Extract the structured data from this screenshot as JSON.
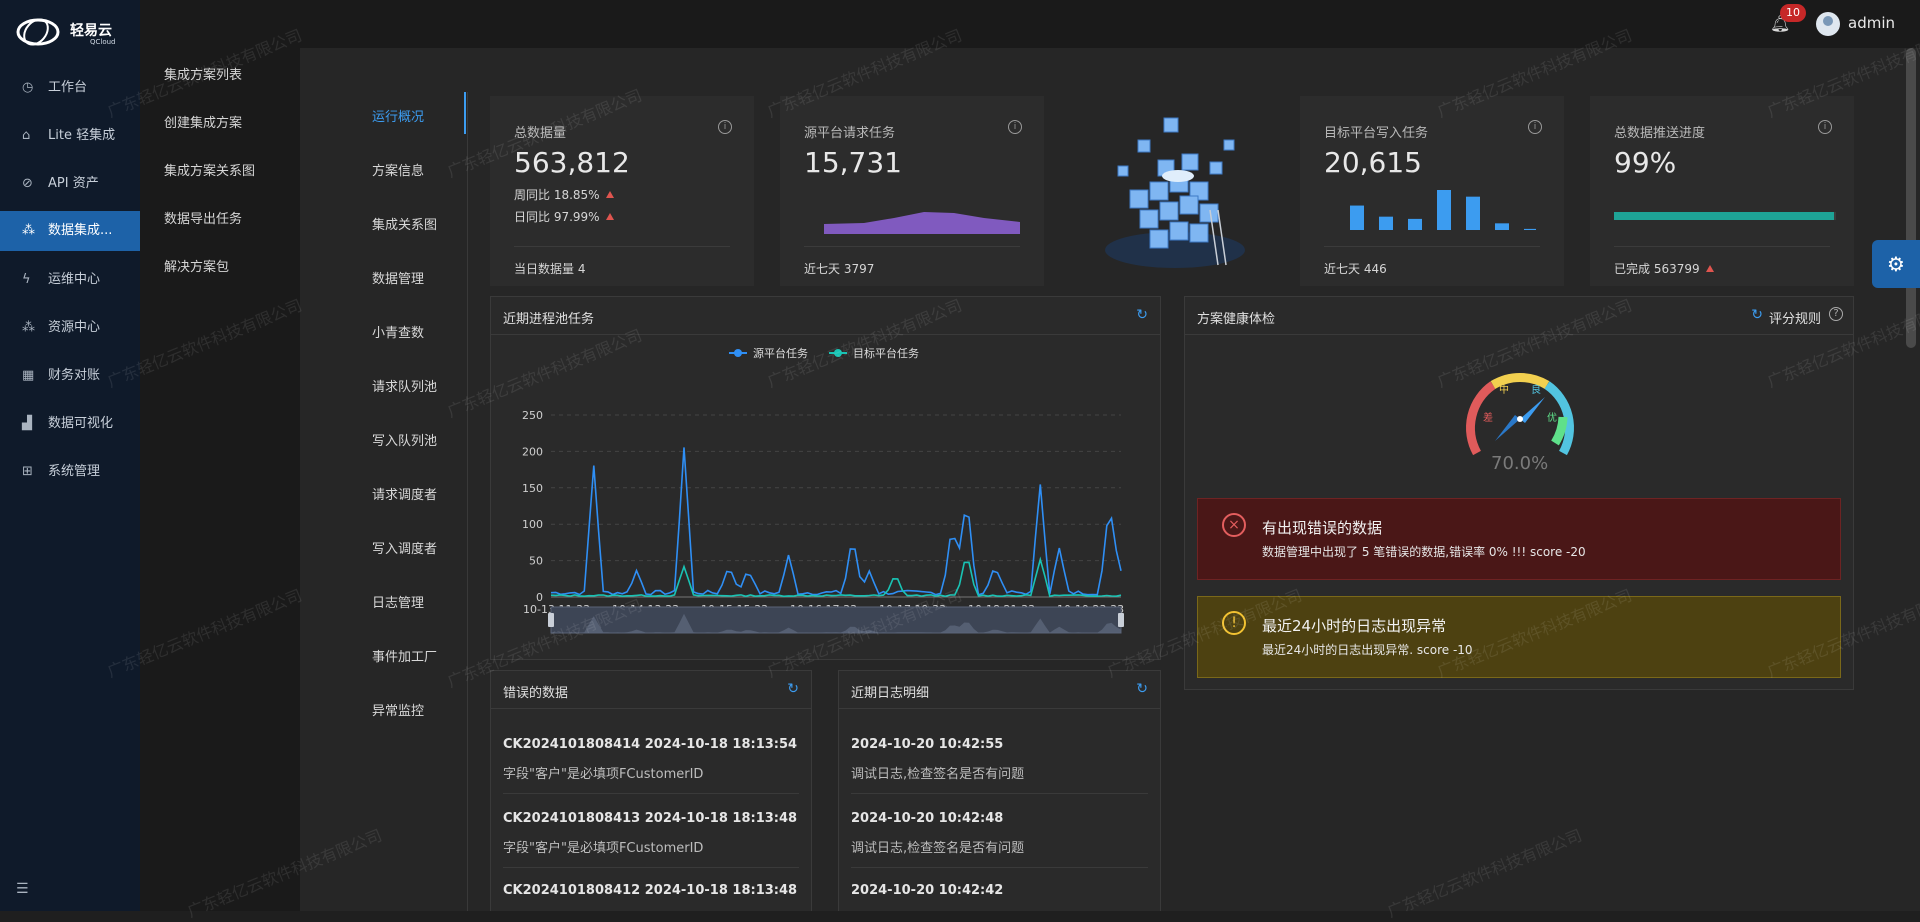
{
  "brand": {
    "name": "轻易云",
    "sub": "QCloud"
  },
  "nav": {
    "items": [
      {
        "label": "工作台",
        "icon": "clock-icon"
      },
      {
        "label": "Lite 轻集成",
        "icon": "lite-icon"
      },
      {
        "label": "API 资产",
        "icon": "compass-icon"
      },
      {
        "label": "数据集成...",
        "icon": "integration-icon",
        "active": true
      },
      {
        "label": "运维中心",
        "icon": "bolt-icon"
      },
      {
        "label": "资源中心",
        "icon": "resource-icon"
      },
      {
        "label": "财务对账",
        "icon": "ledger-icon"
      },
      {
        "label": "数据可视化",
        "icon": "chart-icon"
      },
      {
        "label": "系统管理",
        "icon": "system-icon"
      }
    ]
  },
  "subnav": {
    "items": [
      "集成方案列表",
      "创建集成方案",
      "集成方案关系图",
      "数据导出任务",
      "解决方案包"
    ]
  },
  "topbar": {
    "badge": "10",
    "user": "admin"
  },
  "tabs": {
    "items": [
      "运行概况",
      "方案信息",
      "集成关系图",
      "数据管理",
      "小青查数",
      "请求队列池",
      "写入队列池",
      "请求调度者",
      "写入调度者",
      "日志管理",
      "事件加工厂",
      "异常监控"
    ]
  },
  "kpi": {
    "total": {
      "label": "总数据量",
      "value": "563,812",
      "week": "周同比 18.85%",
      "day": "日同比 97.99%",
      "foot": "当日数据量  4"
    },
    "source": {
      "label": "源平台请求任务",
      "value": "15,731",
      "foot": "近七天  3797"
    },
    "target": {
      "label": "目标平台写入任务",
      "value": "20,615",
      "foot": "近七天  446",
      "bars": [
        22,
        12,
        10,
        36,
        30,
        6,
        1
      ]
    },
    "progress": {
      "label": "总数据推送进度",
      "value": "99%",
      "percent": 99,
      "foot": "已完成 563799"
    }
  },
  "chart_panel": {
    "title": "近期进程池任务"
  },
  "chart_data": {
    "type": "line",
    "categories": [
      "10-13 11:33",
      "10-14 13:33",
      "10-15 15:33",
      "10-16 17:33",
      "10-17 19:33",
      "10-18 21:33",
      "10-19 23:33"
    ],
    "ylim": [
      0,
      250
    ],
    "yticks": [
      "0",
      "50",
      "100",
      "150",
      "200",
      "250"
    ],
    "series": [
      {
        "name": "源平台任务",
        "color": "#2f8ff5"
      },
      {
        "name": "目标平台任务",
        "color": "#19c3b4"
      }
    ]
  },
  "health": {
    "title": "方案健康体检",
    "rule": "评分规则",
    "score": "70.0%",
    "gauge_labels": {
      "poor": "差",
      "mid": "中",
      "good": "良",
      "best": "优"
    },
    "msg1": {
      "title": "有出现错误的数据",
      "text": "数据管理中出现了 5 笔错误的数据,错误率 0% !!! score -20"
    },
    "msg2": {
      "title": "最近24小时的日志出现异常",
      "text": "最近24小时的日志出现异常. score -10"
    }
  },
  "errors": {
    "title": "错误的数据",
    "items": [
      {
        "title": "CK2024101808414 2024-10-18 18:13:54",
        "sub": "字段\"客户\"是必填项FCustomerID"
      },
      {
        "title": "CK2024101808413 2024-10-18 18:13:48",
        "sub": "字段\"客户\"是必填项FCustomerID"
      },
      {
        "title": "CK2024101808412 2024-10-18 18:13:48",
        "sub": ""
      }
    ]
  },
  "logs": {
    "title": "近期日志明细",
    "items": [
      {
        "title": "2024-10-20 10:42:55",
        "sub": "调试日志,检查签名是否有问题"
      },
      {
        "title": "2024-10-20 10:42:48",
        "sub": "调试日志,检查签名是否有问题"
      },
      {
        "title": "2024-10-20 10:42:42",
        "sub": ""
      }
    ]
  },
  "watermark": "广东轻亿云软件科技有限公司"
}
